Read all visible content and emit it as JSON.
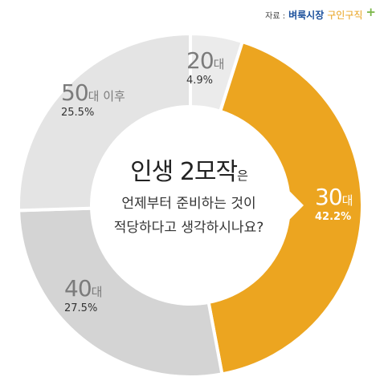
{
  "source": {
    "label": "자료 :",
    "brand_name": "벼룩시장",
    "brand_service": "구인구직"
  },
  "chart_data": {
    "type": "pie",
    "title": "인생 2모작은",
    "subtitle_lines": [
      "언제부터 준비하는 것이",
      "적당하다고 생각하시나요?"
    ],
    "slices": [
      {
        "category": "20",
        "unit": "대",
        "value": 4.9,
        "value_label": "4.9%",
        "color": "#ebebeb"
      },
      {
        "category": "30",
        "unit": "대",
        "value": 42.2,
        "value_label": "42.2%",
        "color": "#eca520"
      },
      {
        "category": "40",
        "unit": "대",
        "value": 27.5,
        "value_label": "27.5%",
        "color": "#d4d4d4"
      },
      {
        "category": "50",
        "unit": "대 이후",
        "value": 25.5,
        "value_label": "25.5%",
        "color": "#e4e4e4"
      }
    ]
  }
}
